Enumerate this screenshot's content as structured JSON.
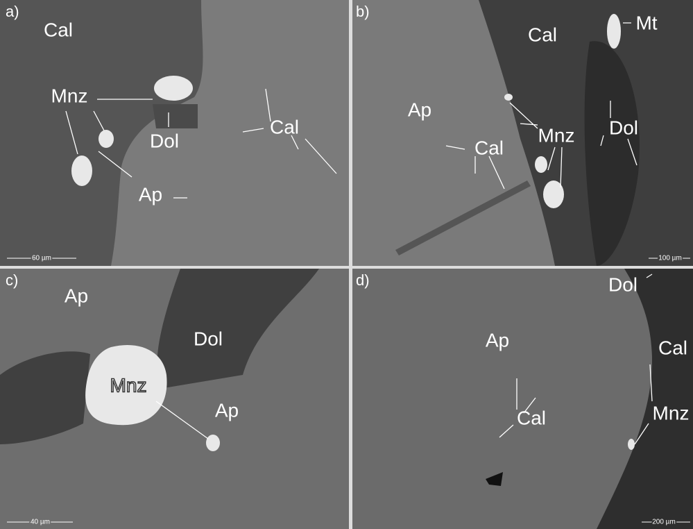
{
  "panels": [
    {
      "label": "a)",
      "scale_bar": "60 µm",
      "annotations": [
        "Cal",
        "Mnz",
        "Dol",
        "Cal",
        "Ap"
      ]
    },
    {
      "label": "b)",
      "scale_bar": "100 µm",
      "annotations": [
        "Cal",
        "Mt",
        "Ap",
        "Mnz",
        "Dol",
        "Cal"
      ]
    },
    {
      "label": "c)",
      "scale_bar": "40 µm",
      "annotations": [
        "Ap",
        "Dol",
        "Mnz",
        "Ap"
      ]
    },
    {
      "label": "d)",
      "scale_bar": "200 µm",
      "annotations": [
        "Dol",
        "Ap",
        "Cal",
        "Cal",
        "Mnz"
      ]
    }
  ]
}
